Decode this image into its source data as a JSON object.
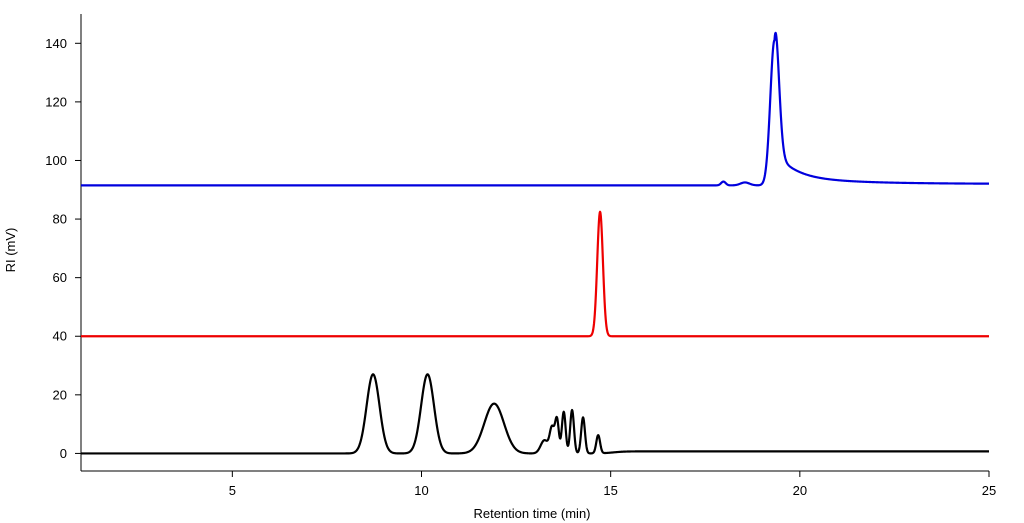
{
  "chart_data": {
    "type": "line",
    "title": "",
    "xlabel": "Retention time (min)",
    "ylabel": "RI (mV)",
    "xlim": [
      1,
      25
    ],
    "ylim": [
      -6,
      150
    ],
    "x_ticks": [
      5,
      10,
      15,
      20,
      25
    ],
    "y_ticks": [
      0,
      20,
      40,
      60,
      80,
      100,
      120,
      140
    ],
    "grid": false,
    "legend": "none",
    "series": [
      {
        "color": "#0000dd",
        "baseline": 91.5,
        "tail_level": 92,
        "peaks": [
          {
            "center": 17.98,
            "height": 1.3,
            "width": 0.06
          },
          {
            "center": 18.55,
            "height": 1.0,
            "width": 0.12
          },
          {
            "center": 19.33,
            "height": 49.5,
            "width": 0.11,
            "tailing": 0.35
          }
        ]
      },
      {
        "color": "#ee0000",
        "baseline": 40,
        "peaks": [
          {
            "center": 14.72,
            "height": 42.5,
            "width": 0.075
          }
        ]
      },
      {
        "color": "#000000",
        "baseline": 0,
        "tail_level": 0.7,
        "peaks": [
          {
            "center": 8.72,
            "height": 27,
            "width": 0.17
          },
          {
            "center": 10.16,
            "height": 27,
            "width": 0.17
          },
          {
            "center": 11.92,
            "height": 17,
            "width": 0.26
          },
          {
            "center": 13.25,
            "height": 4.5,
            "width": 0.1
          },
          {
            "center": 13.45,
            "height": 8.5,
            "width": 0.06
          },
          {
            "center": 13.58,
            "height": 11.5,
            "width": 0.05
          },
          {
            "center": 13.76,
            "height": 14.2,
            "width": 0.05
          },
          {
            "center": 13.98,
            "height": 14.8,
            "width": 0.05
          },
          {
            "center": 14.27,
            "height": 12.3,
            "width": 0.05
          },
          {
            "center": 14.67,
            "height": 6.2,
            "width": 0.05
          }
        ]
      }
    ]
  }
}
